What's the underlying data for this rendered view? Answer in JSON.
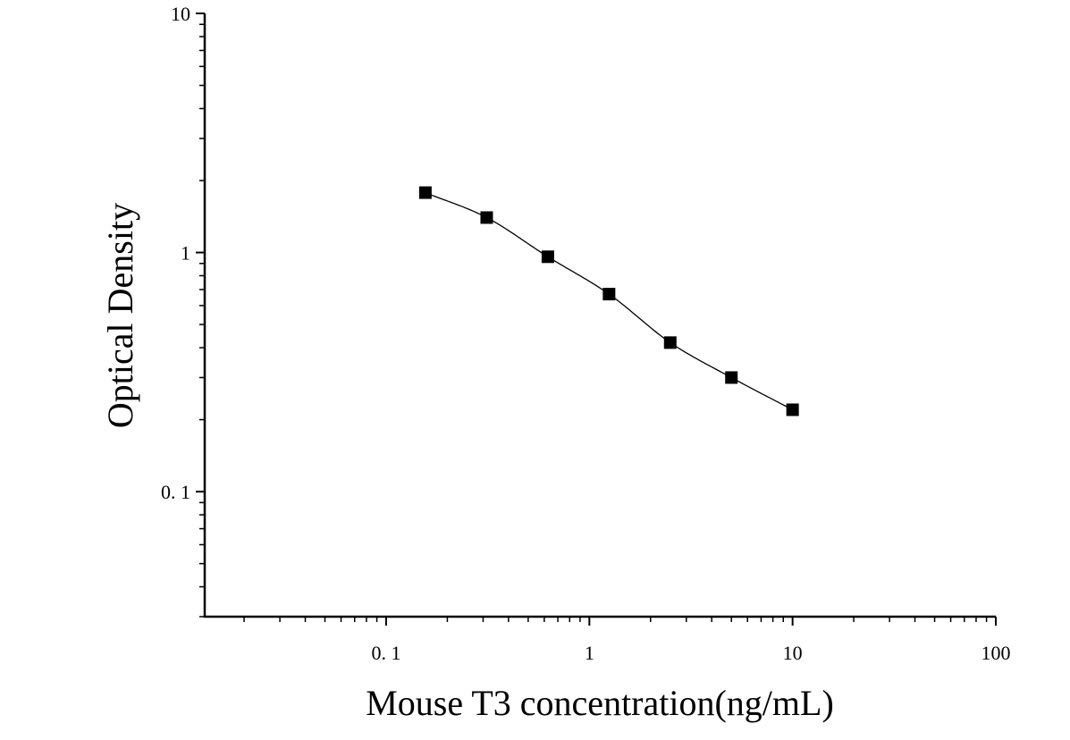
{
  "chart_data": {
    "type": "scatter",
    "title": "",
    "xlabel": "Mouse T3 concentration(ng/mL)",
    "ylabel": "Optical Density",
    "xscale": "log",
    "yscale": "log",
    "xlim": [
      0.0128,
      100
    ],
    "ylim": [
      0.03,
      10
    ],
    "x_ticks": [
      {
        "value": 0.1,
        "label": "0. 1"
      },
      {
        "value": 1,
        "label": "1"
      },
      {
        "value": 10,
        "label": "10"
      },
      {
        "value": 100,
        "label": "100"
      }
    ],
    "y_ticks": [
      {
        "value": 0.1,
        "label": "0. 1"
      },
      {
        "value": 1,
        "label": "1"
      },
      {
        "value": 10,
        "label": "10"
      }
    ],
    "grid": false,
    "legend": "none",
    "marker": "square",
    "fit_line": true,
    "series": [
      {
        "x": [
          0.156,
          0.3125,
          0.625,
          1.25,
          2.5,
          5,
          10
        ],
        "y": [
          1.78,
          1.4,
          0.96,
          0.67,
          0.42,
          0.3,
          0.22
        ]
      }
    ]
  }
}
